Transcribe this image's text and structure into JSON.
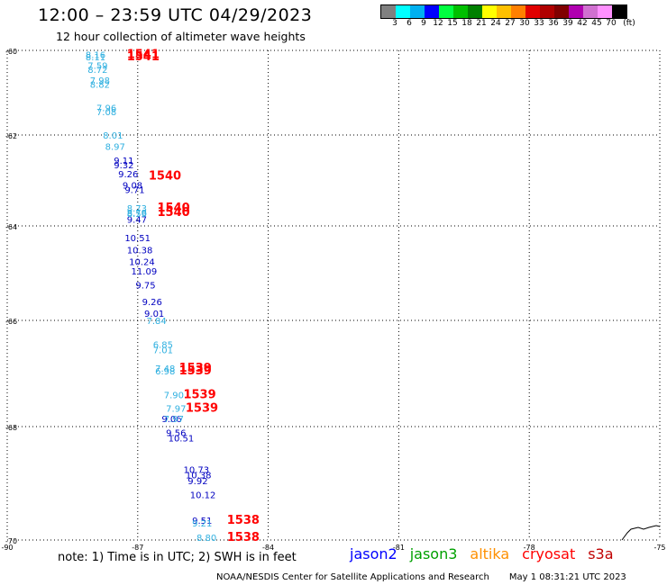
{
  "header": {
    "title": "12:00 – 23:59 UTC 04/29/2023",
    "subtitle": "12 hour collection of altimeter wave heights"
  },
  "colorbar": {
    "unit": "(ft)",
    "colors": [
      "#808080",
      "#00ffff",
      "#00b0f0",
      "#0000ff",
      "#00ff40",
      "#00c000",
      "#008000",
      "#ffff00",
      "#ffc000",
      "#ff8000",
      "#e00000",
      "#b00000",
      "#800000",
      "#b000b0",
      "#d070d0",
      "#ff90ff",
      "#000000"
    ],
    "ticks": [
      "3",
      "6",
      "9",
      "12",
      "15",
      "18",
      "21",
      "24",
      "27",
      "30",
      "33",
      "36",
      "39",
      "42",
      "45",
      "70"
    ]
  },
  "axes": {
    "lat_labels": [
      "-60",
      "-62",
      "-64",
      "-66",
      "-68",
      "-70"
    ],
    "lon_labels": [
      "-90",
      "-87",
      "-84",
      "-81",
      "-78",
      "-75"
    ]
  },
  "chart_data": {
    "type": "scatter",
    "title": "12:00 – 23:59 UTC 04/29/2023",
    "subtitle": "12 hour collection of altimeter wave heights",
    "xlabel": "",
    "ylabel": "",
    "x_range": [
      -90,
      -75
    ],
    "y_range": [
      -70,
      -60
    ],
    "grid": true,
    "series": [
      {
        "name": "jason2",
        "color": "#0000c0",
        "points": [
          {
            "lon": -87.55,
            "lat": -62.55,
            "value": "9.11"
          },
          {
            "lon": -87.55,
            "lat": -62.65,
            "value": "9.32"
          },
          {
            "lon": -87.45,
            "lat": -62.85,
            "value": "9.26"
          },
          {
            "lon": -87.35,
            "lat": -63.1,
            "value": "9.08"
          },
          {
            "lon": -87.3,
            "lat": -63.2,
            "value": "9.71"
          },
          {
            "lon": -87.25,
            "lat": -63.85,
            "value": "9.47"
          },
          {
            "lon": -87.3,
            "lat": -64.25,
            "value": "10.51"
          },
          {
            "lon": -87.25,
            "lat": -64.5,
            "value": "10.38"
          },
          {
            "lon": -87.2,
            "lat": -64.75,
            "value": "10.24"
          },
          {
            "lon": -87.15,
            "lat": -64.95,
            "value": "11.09"
          },
          {
            "lon": -87.05,
            "lat": -65.25,
            "value": "9.75"
          },
          {
            "lon": -86.9,
            "lat": -65.6,
            "value": "9.26"
          },
          {
            "lon": -86.85,
            "lat": -65.85,
            "value": "9.01"
          },
          {
            "lon": -86.45,
            "lat": -67.85,
            "value": "9.06"
          },
          {
            "lon": -86.35,
            "lat": -68.1,
            "value": "9.56"
          },
          {
            "lon": -86.3,
            "lat": -68.2,
            "value": "10.51"
          },
          {
            "lon": -85.95,
            "lat": -68.75,
            "value": "10.73"
          },
          {
            "lon": -85.9,
            "lat": -68.85,
            "value": "10.38"
          },
          {
            "lon": -85.85,
            "lat": -68.95,
            "value": "9.92"
          },
          {
            "lon": -85.8,
            "lat": -69.2,
            "value": "10.12"
          },
          {
            "lon": -85.75,
            "lat": -69.65,
            "value": "9.51"
          }
        ]
      },
      {
        "name": "altika",
        "color": "#30b0e0",
        "points": [
          {
            "lon": -88.2,
            "lat": -60.1,
            "value": "8.16"
          },
          {
            "lon": -88.2,
            "lat": -60.15,
            "value": "8.11"
          },
          {
            "lon": -88.15,
            "lat": -60.35,
            "value": "7.59"
          },
          {
            "lon": -88.15,
            "lat": -60.45,
            "value": "8.72"
          },
          {
            "lon": -88.1,
            "lat": -60.7,
            "value": "7.98"
          },
          {
            "lon": -88.1,
            "lat": -60.8,
            "value": "8.82"
          },
          {
            "lon": -87.95,
            "lat": -61.35,
            "value": "7.96"
          },
          {
            "lon": -87.95,
            "lat": -61.45,
            "value": "7.08"
          },
          {
            "lon": -87.8,
            "lat": -62.0,
            "value": "8.01"
          },
          {
            "lon": -87.75,
            "lat": -62.25,
            "value": "8.97"
          },
          {
            "lon": -87.25,
            "lat": -63.6,
            "value": "8.73"
          },
          {
            "lon": -87.25,
            "lat": -63.7,
            "value": "8.78"
          },
          {
            "lon": -87.25,
            "lat": -63.72,
            "value": "8.59"
          },
          {
            "lon": -86.8,
            "lat": -66.0,
            "value": "7.84"
          },
          {
            "lon": -86.65,
            "lat": -66.45,
            "value": "6.85"
          },
          {
            "lon": -86.65,
            "lat": -66.55,
            "value": "7.01"
          },
          {
            "lon": -86.6,
            "lat": -66.9,
            "value": "7.48"
          },
          {
            "lon": -86.6,
            "lat": -66.95,
            "value": "6.98"
          },
          {
            "lon": -86.4,
            "lat": -67.4,
            "value": "7.90"
          },
          {
            "lon": -86.35,
            "lat": -67.65,
            "value": "7.97"
          },
          {
            "lon": -86.4,
            "lat": -67.85,
            "value": "7.97"
          },
          {
            "lon": -85.75,
            "lat": -69.7,
            "value": "9.21"
          },
          {
            "lon": -85.65,
            "lat": -69.95,
            "value": "8.80"
          }
        ]
      },
      {
        "name": "cryosat",
        "color": "#ff0000",
        "points": [
          {
            "lon": -87.25,
            "lat": -60.1,
            "value": "1541"
          },
          {
            "lon": -87.25,
            "lat": -60.15,
            "value": "1541"
          },
          {
            "lon": -86.75,
            "lat": -62.9,
            "value": "1540"
          },
          {
            "lon": -86.55,
            "lat": -63.6,
            "value": "1540"
          },
          {
            "lon": -86.55,
            "lat": -63.7,
            "value": "1540"
          },
          {
            "lon": -86.05,
            "lat": -66.9,
            "value": "1539"
          },
          {
            "lon": -86.05,
            "lat": -66.95,
            "value": "1539"
          },
          {
            "lon": -85.95,
            "lat": -67.4,
            "value": "1539"
          },
          {
            "lon": -85.9,
            "lat": -67.65,
            "value": "1539"
          },
          {
            "lon": -84.95,
            "lat": -69.65,
            "value": "1538"
          },
          {
            "lon": -84.95,
            "lat": -69.95,
            "value": "1538"
          }
        ]
      }
    ]
  },
  "footer": {
    "note": "note: 1) Time is in UTC; 2) SWH is in feet",
    "satellites": [
      {
        "name": "jason2",
        "color": "#0000ff"
      },
      {
        "name": "jason3",
        "color": "#00a000"
      },
      {
        "name": "altika",
        "color": "#ff9000"
      },
      {
        "name": "cryosat",
        "color": "#ff0000"
      },
      {
        "name": "s3a",
        "color": "#c00000"
      }
    ],
    "credit": "NOAA/NESDIS Center for Satellite Applications and Research",
    "timestamp": "May  1 08:31:21 UTC 2023"
  }
}
